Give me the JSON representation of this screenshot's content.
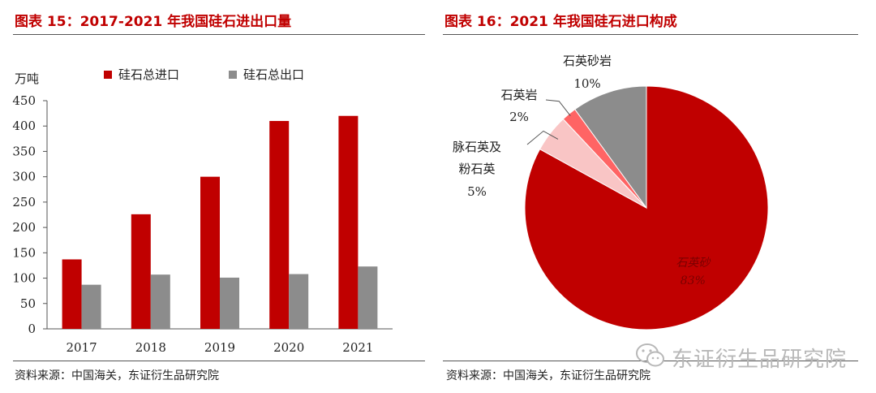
{
  "left_panel": {
    "figure_title": "图表 15：2017-2021 年我国硅石进出口量",
    "source": "资料来源：中国海关，东证衍生品研究院"
  },
  "right_panel": {
    "figure_title": "图表 16：2021 年我国硅石进口构成",
    "source": "资料来源：中国海关，东证衍生品研究院"
  },
  "watermark": {
    "text": "东证衍生品研究院",
    "icon": "wechat-icon"
  },
  "colors": {
    "import": "#c00000",
    "export": "#8c8c8c",
    "title": "#c00000"
  },
  "chart_data": [
    {
      "type": "bar",
      "title": "2017-2021 年我国硅石进出口量",
      "ylabel": "万吨",
      "xlabel": "",
      "categories": [
        "2017",
        "2018",
        "2019",
        "2020",
        "2021"
      ],
      "series": [
        {
          "name": "硅石总进口",
          "values": [
            137,
            226,
            300,
            410,
            420
          ],
          "color": "#c00000"
        },
        {
          "name": "硅石总出口",
          "values": [
            87,
            107,
            101,
            108,
            123
          ],
          "color": "#8c8c8c"
        }
      ],
      "ylim": [
        0,
        450
      ],
      "yticks": [
        0,
        50,
        100,
        150,
        200,
        250,
        300,
        350,
        400,
        450
      ],
      "legend": "top",
      "grid": false
    },
    {
      "type": "pie",
      "title": "2021 年我国硅石进口构成",
      "slices": [
        {
          "name": "石英砂",
          "value": 83,
          "label": "83%",
          "color": "#c00000"
        },
        {
          "name": "脉石英及粉石英",
          "name_lines": [
            "脉石英及",
            "粉石英"
          ],
          "value": 5,
          "label": "5%",
          "color": "#f9c5c5"
        },
        {
          "name": "石英岩",
          "value": 2,
          "label": "2%",
          "color": "#ff6464"
        },
        {
          "name": "石英砂岩",
          "value": 10,
          "label": "10%",
          "color": "#8c8c8c"
        }
      ]
    }
  ]
}
